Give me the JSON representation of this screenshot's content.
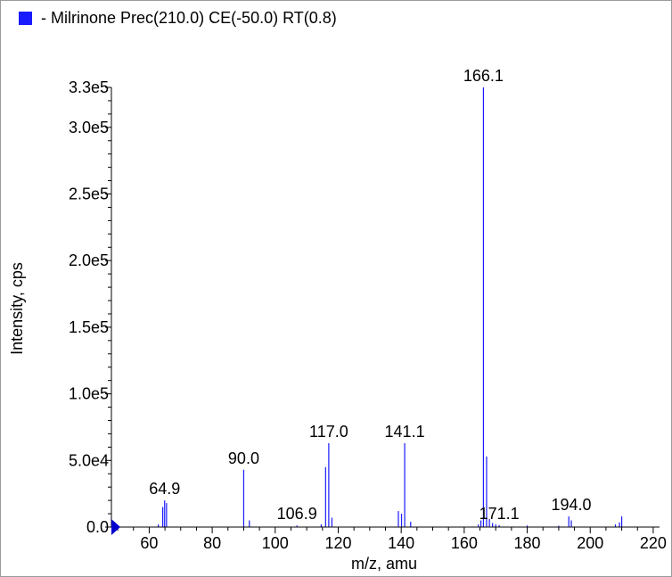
{
  "legend": {
    "label": "- Milrinone Prec(210.0) CE(-50.0) RT(0.8)",
    "swatch_color": "#1a1aff",
    "icon": "filled-square-icon"
  },
  "chart_data": {
    "type": "bar",
    "xlabel": "m/z, amu",
    "ylabel": "Intensity, cps",
    "xlim": [
      48,
      222
    ],
    "ylim": [
      0,
      330000
    ],
    "x_ticks": [
      60,
      80,
      100,
      120,
      140,
      160,
      180,
      200,
      220
    ],
    "x_tick_labels": [
      "60",
      "80",
      "100",
      "120",
      "140",
      "160",
      "180",
      "200",
      "220"
    ],
    "y_ticks": [
      0,
      50000,
      100000,
      150000,
      200000,
      250000,
      300000,
      330000
    ],
    "y_tick_labels": [
      "0.0",
      "5.0e4",
      "1.0e5",
      "1.5e5",
      "2.0e5",
      "2.5e5",
      "3.0e5",
      "3.3e5"
    ],
    "grid": false,
    "color": "#1a1aff",
    "series": [
      {
        "x": [
          62.9,
          64.3,
          64.9,
          65.5,
          90.0,
          91.8,
          106.9,
          114.6,
          116.0,
          117.0,
          118.0,
          139.1,
          140.1,
          141.1,
          143.0,
          164.5,
          165.3,
          166.1,
          167.1,
          168.0,
          169.0,
          170.0,
          171.1,
          180.0,
          190.0,
          193.2,
          194.0,
          208.0,
          209.3,
          210.0
        ],
        "y": [
          2000,
          15000,
          20000,
          18000,
          43000,
          5000,
          1200,
          2000,
          45000,
          63000,
          7000,
          12000,
          10000,
          63000,
          4000,
          2000,
          5000,
          330000,
          53000,
          6000,
          3000,
          2000,
          1500,
          1200,
          1000,
          8000,
          5000,
          2000,
          3500,
          8000
        ]
      }
    ],
    "peak_labels": [
      {
        "x": 64.9,
        "y": 20000,
        "text": "64.9"
      },
      {
        "x": 90.0,
        "y": 43000,
        "text": "90.0"
      },
      {
        "x": 106.9,
        "y": 1200,
        "text": "106.9"
      },
      {
        "x": 117.0,
        "y": 63000,
        "text": "117.0"
      },
      {
        "x": 141.1,
        "y": 63000,
        "text": "141.1"
      },
      {
        "x": 166.1,
        "y": 330000,
        "text": "166.1"
      },
      {
        "x": 171.1,
        "y": 1500,
        "text": "171.1"
      },
      {
        "x": 194.0,
        "y": 8000,
        "text": "194.0"
      }
    ],
    "baseline_marker_color": "#0000cc"
  }
}
